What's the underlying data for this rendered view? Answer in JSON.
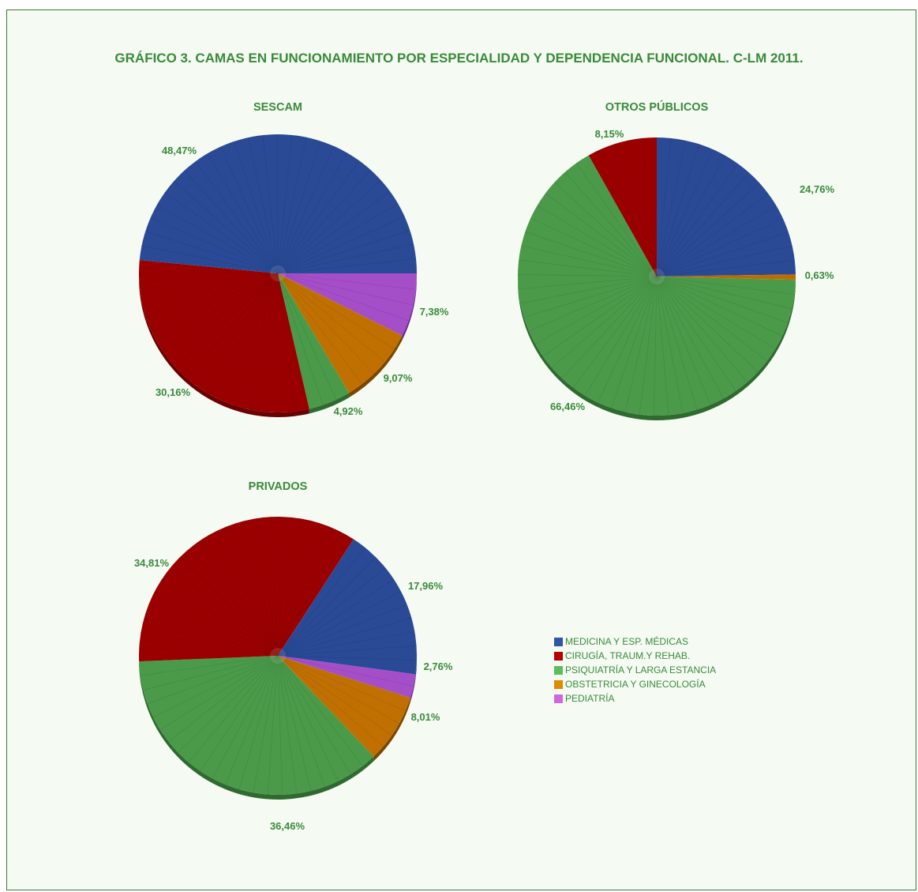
{
  "title": "GRÁFICO 3. CAMAS EN FUNCIONAMIENTO POR ESPECIALIDAD Y DEPENDENCIA FUNCIONAL. C-LM 2011.",
  "legend": [
    {
      "label": "MEDICINA Y ESP. MÉDICAS",
      "color": "#2f56a8"
    },
    {
      "label": "CIRUGÍA, TRAUM.Y REHAB.",
      "color": "#b80000"
    },
    {
      "label": "PSIQUIATRÍA Y LARGA ESTANCIA",
      "color": "#5cbf5c"
    },
    {
      "label": "OBSTETRICIA Y GINECOLOGÍA",
      "color": "#e08a00"
    },
    {
      "label": "PEDIATRÍA",
      "color": "#d066e0"
    }
  ],
  "chart_data": [
    {
      "type": "pie",
      "title": "SESCAM",
      "categories": [
        "MEDICINA Y ESP. MÉDICAS",
        "CIRUGÍA, TRAUM.Y REHAB.",
        "PSIQUIATRÍA Y LARGA ESTANCIA",
        "OBSTETRICIA Y GINECOLOGÍA",
        "PEDIATRÍA"
      ],
      "values": [
        48.47,
        30.16,
        4.92,
        9.07,
        7.38
      ],
      "labels": [
        "48,47%",
        "30,16%",
        "4,92%",
        "9,07%",
        "7,38%"
      ]
    },
    {
      "type": "pie",
      "title": "OTROS PÚBLICOS",
      "categories": [
        "MEDICINA Y ESP. MÉDICAS",
        "CIRUGÍA, TRAUM.Y REHAB.",
        "PSIQUIATRÍA Y LARGA ESTANCIA",
        "OBSTETRICIA Y GINECOLOGÍA",
        "PEDIATRÍA"
      ],
      "values": [
        24.76,
        8.15,
        66.46,
        0.63,
        0
      ],
      "labels": [
        "24,76%",
        "8,15%",
        "66,46%",
        "0,63%",
        ""
      ]
    },
    {
      "type": "pie",
      "title": "PRIVADOS",
      "categories": [
        "MEDICINA Y ESP. MÉDICAS",
        "CIRUGÍA, TRAUM.Y REHAB.",
        "PSIQUIATRÍA Y LARGA ESTANCIA",
        "OBSTETRICIA Y GINECOLOGÍA",
        "PEDIATRÍA"
      ],
      "values": [
        17.96,
        34.81,
        36.46,
        8.01,
        2.76
      ],
      "labels": [
        "17,96%",
        "34,81%",
        "36,46%",
        "8,01%",
        "2,76%"
      ]
    }
  ]
}
